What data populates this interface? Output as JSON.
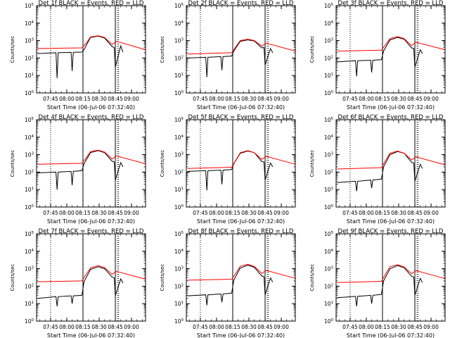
{
  "figure": {
    "colors": {
      "events": "#000000",
      "lld": "#ff0000",
      "axes": "#000000",
      "background": "#ffffff"
    },
    "shared": {
      "type": "line",
      "title_suffix": " BLACK = Events, RED = LLD",
      "xlabel": "Start Time (06-Jul-06 07:32:40)",
      "ylabel": "Counts/sec",
      "y_scale": "log",
      "ylim": [
        1,
        100000
      ],
      "y_ticks": [
        1,
        10,
        100,
        1000,
        10000,
        100000
      ],
      "y_tick_labels": [
        "10^0",
        "10^1",
        "10^2",
        "10^3",
        "10^4",
        "10^5"
      ],
      "x_range": [
        "07:32:40",
        "09:13:00"
      ],
      "x_ticks": [
        "07:45",
        "08:00",
        "08:15",
        "08:30",
        "08:45",
        "09:00"
      ],
      "vertical_lines": [
        {
          "time": "07:45",
          "style": "dotted"
        },
        {
          "time": "08:15",
          "style": "solid"
        },
        {
          "time": "08:45",
          "style": "solid"
        },
        {
          "time": "08:47",
          "style": "dotted"
        },
        {
          "time": "08:48",
          "style": "dotted"
        }
      ]
    }
  },
  "chart_data": [
    {
      "type": "line",
      "title": "Det 1f BLACK = Events, RED = LLD",
      "xlabel": "Start Time (06-Jul-06 07:32:40)",
      "ylabel": "Counts/sec",
      "series": [
        {
          "color": "#000000",
          "x": [
            "07:33",
            "07:50",
            "07:51",
            "07:52",
            "08:04",
            "08:05",
            "08:06",
            "08:14",
            "08:16",
            "08:22",
            "08:29",
            "08:35",
            "08:42",
            "08:44",
            "08:45",
            "08:50",
            "08:52"
          ],
          "y": [
            180,
            200,
            7,
            200,
            210,
            18,
            210,
            220,
            300,
            1500,
            1800,
            1400,
            450,
            400,
            30,
            500,
            220
          ]
        },
        {
          "color": "#ff0000",
          "x": [
            "07:33",
            "08:14",
            "08:18",
            "08:22",
            "08:29",
            "08:35",
            "08:42",
            "08:46",
            "09:13"
          ],
          "y": [
            350,
            380,
            700,
            1600,
            1900,
            1500,
            600,
            900,
            300
          ]
        }
      ]
    },
    {
      "type": "line",
      "title": "Det 2f BLACK = Events, RED = LLD",
      "xlabel": "Start Time (06-Jul-06 07:32:40)",
      "ylabel": "Counts/sec",
      "series": [
        {
          "color": "#000000",
          "x": [
            "07:33",
            "07:50",
            "07:51",
            "07:52",
            "08:04",
            "08:05",
            "08:06",
            "08:14",
            "08:16",
            "08:22",
            "08:29",
            "08:35",
            "08:42",
            "08:44",
            "08:45",
            "08:50",
            "08:52"
          ],
          "y": [
            100,
            110,
            8,
            110,
            120,
            20,
            120,
            130,
            250,
            900,
            1100,
            950,
            380,
            400,
            40,
            350,
            200
          ]
        },
        {
          "color": "#ff0000",
          "x": [
            "07:33",
            "08:14",
            "08:18",
            "08:22",
            "08:29",
            "08:35",
            "08:42",
            "08:46",
            "09:13"
          ],
          "y": [
            170,
            200,
            450,
            1000,
            1200,
            1000,
            480,
            700,
            250
          ]
        }
      ]
    },
    {
      "type": "line",
      "title": "Det 3f BLACK = Events, RED = LLD",
      "xlabel": "Start Time (06-Jul-06 07:32:40)",
      "ylabel": "Counts/sec",
      "series": [
        {
          "color": "#000000",
          "x": [
            "07:33",
            "07:50",
            "07:51",
            "07:52",
            "08:04",
            "08:05",
            "08:06",
            "08:14",
            "08:16",
            "08:22",
            "08:29",
            "08:35",
            "08:42",
            "08:44",
            "08:45",
            "08:50",
            "08:52"
          ],
          "y": [
            60,
            70,
            9,
            70,
            75,
            15,
            75,
            80,
            250,
            1100,
            1500,
            1200,
            380,
            350,
            30,
            300,
            180
          ]
        },
        {
          "color": "#ff0000",
          "x": [
            "07:33",
            "08:14",
            "08:18",
            "08:22",
            "08:29",
            "08:35",
            "08:42",
            "08:46",
            "09:13"
          ],
          "y": [
            250,
            280,
            600,
            1300,
            1700,
            1300,
            520,
            800,
            300
          ]
        }
      ]
    },
    {
      "type": "line",
      "title": "Det 4f BLACK = Events, RED = LLD",
      "xlabel": "Start Time (06-Jul-06 07:32:40)",
      "ylabel": "Counts/sec",
      "series": [
        {
          "color": "#000000",
          "x": [
            "07:33",
            "07:50",
            "07:51",
            "07:52",
            "08:04",
            "08:05",
            "08:06",
            "08:14",
            "08:16",
            "08:22",
            "08:29",
            "08:35",
            "08:42",
            "08:44",
            "08:45",
            "08:50",
            "08:52"
          ],
          "y": [
            90,
            100,
            10,
            100,
            110,
            18,
            110,
            120,
            300,
            1300,
            1700,
            1300,
            420,
            380,
            35,
            350,
            200
          ]
        },
        {
          "color": "#ff0000",
          "x": [
            "07:33",
            "08:14",
            "08:18",
            "08:22",
            "08:29",
            "08:35",
            "08:42",
            "08:46",
            "09:13"
          ],
          "y": [
            280,
            320,
            650,
            1500,
            1800,
            1400,
            560,
            850,
            300
          ]
        }
      ]
    },
    {
      "type": "line",
      "title": "Det 5f BLACK = Events, RED = LLD",
      "xlabel": "Start Time (06-Jul-06 07:32:40)",
      "ylabel": "Counts/sec",
      "series": [
        {
          "color": "#000000",
          "x": [
            "07:33",
            "07:50",
            "07:51",
            "07:52",
            "08:04",
            "08:05",
            "08:06",
            "08:14",
            "08:16",
            "08:22",
            "08:29",
            "08:35",
            "08:42",
            "08:44",
            "08:45",
            "08:50",
            "08:52"
          ],
          "y": [
            110,
            120,
            9,
            120,
            130,
            20,
            130,
            140,
            300,
            1200,
            1600,
            1300,
            400,
            380,
            35,
            330,
            200
          ]
        },
        {
          "color": "#ff0000",
          "x": [
            "07:33",
            "08:14",
            "08:18",
            "08:22",
            "08:29",
            "08:35",
            "08:42",
            "08:46",
            "09:13"
          ],
          "y": [
            160,
            190,
            500,
            1300,
            1700,
            1300,
            540,
            800,
            280
          ]
        }
      ]
    },
    {
      "type": "line",
      "title": "Det 6f BLACK = Events, RED = LLD",
      "xlabel": "Start Time (06-Jul-06 07:32:40)",
      "ylabel": "Counts/sec",
      "series": [
        {
          "color": "#000000",
          "x": [
            "07:33",
            "07:50",
            "07:51",
            "07:52",
            "08:04",
            "08:05",
            "08:06",
            "08:14",
            "08:16",
            "08:22",
            "08:29",
            "08:35",
            "08:42",
            "08:44",
            "08:45",
            "08:50",
            "08:52"
          ],
          "y": [
            25,
            30,
            8,
            30,
            35,
            12,
            35,
            40,
            200,
            1000,
            1500,
            1200,
            360,
            330,
            30,
            280,
            160
          ]
        },
        {
          "color": "#ff0000",
          "x": [
            "07:33",
            "08:14",
            "08:18",
            "08:22",
            "08:29",
            "08:35",
            "08:42",
            "08:46",
            "09:13"
          ],
          "y": [
            150,
            180,
            480,
            1200,
            1600,
            1200,
            500,
            750,
            260
          ]
        }
      ]
    },
    {
      "type": "line",
      "title": "Det 7f BLACK = Events, RED = LLD",
      "xlabel": "Start Time (06-Jul-06 07:32:40)",
      "ylabel": "Counts/sec",
      "series": [
        {
          "color": "#000000",
          "x": [
            "07:33",
            "07:50",
            "07:51",
            "07:52",
            "08:04",
            "08:05",
            "08:06",
            "08:14",
            "08:16",
            "08:22",
            "08:29",
            "08:35",
            "08:42",
            "08:44",
            "08:45",
            "08:50",
            "08:52"
          ],
          "y": [
            20,
            25,
            7,
            25,
            28,
            10,
            28,
            30,
            180,
            900,
            1300,
            1000,
            330,
            300,
            28,
            260,
            150
          ]
        },
        {
          "color": "#ff0000",
          "x": [
            "07:33",
            "08:14",
            "08:18",
            "08:22",
            "08:29",
            "08:35",
            "08:42",
            "08:46",
            "09:13"
          ],
          "y": [
            180,
            200,
            480,
            1100,
            1500,
            1150,
            480,
            700,
            250
          ]
        }
      ]
    },
    {
      "type": "line",
      "title": "Det 8f BLACK = Events, RED = LLD",
      "xlabel": "Start Time (06-Jul-06 07:32:40)",
      "ylabel": "Counts/sec",
      "series": [
        {
          "color": "#000000",
          "x": [
            "07:33",
            "07:50",
            "07:51",
            "07:52",
            "08:04",
            "08:05",
            "08:06",
            "08:14",
            "08:16",
            "08:22",
            "08:29",
            "08:35",
            "08:42",
            "08:44",
            "08:45",
            "08:50",
            "08:52"
          ],
          "y": [
            28,
            32,
            8,
            32,
            36,
            12,
            36,
            40,
            220,
            1100,
            1600,
            1200,
            380,
            350,
            32,
            300,
            170
          ]
        },
        {
          "color": "#ff0000",
          "x": [
            "07:33",
            "08:14",
            "08:18",
            "08:22",
            "08:29",
            "08:35",
            "08:42",
            "08:46",
            "09:13"
          ],
          "y": [
            220,
            250,
            560,
            1400,
            1800,
            1350,
            540,
            800,
            280
          ]
        }
      ]
    },
    {
      "type": "line",
      "title": "Det 9f BLACK = Events, RED = LLD",
      "xlabel": "Start Time (06-Jul-06 07:32:40)",
      "ylabel": "Counts/sec",
      "series": [
        {
          "color": "#000000",
          "x": [
            "07:33",
            "07:50",
            "07:51",
            "07:52",
            "08:04",
            "08:05",
            "08:06",
            "08:14",
            "08:16",
            "08:22",
            "08:29",
            "08:35",
            "08:42",
            "08:44",
            "08:45",
            "08:50",
            "08:52"
          ],
          "y": [
            22,
            26,
            7,
            26,
            30,
            10,
            30,
            34,
            200,
            1000,
            1500,
            1150,
            360,
            330,
            30,
            280,
            160
          ]
        },
        {
          "color": "#ff0000",
          "x": [
            "07:33",
            "08:14",
            "08:18",
            "08:22",
            "08:29",
            "08:35",
            "08:42",
            "08:46",
            "09:13"
          ],
          "y": [
            160,
            190,
            520,
            1300,
            1700,
            1250,
            520,
            780,
            270
          ]
        }
      ]
    }
  ]
}
